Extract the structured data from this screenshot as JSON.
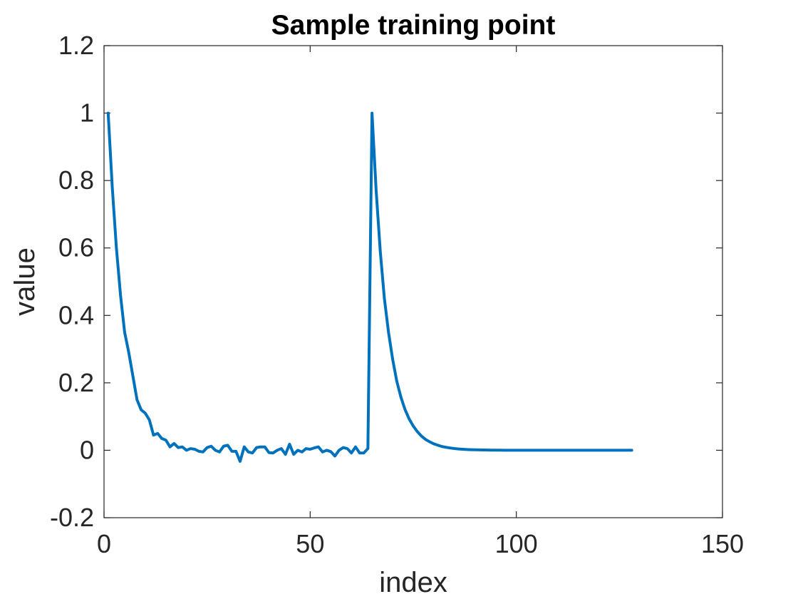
{
  "chart_data": {
    "type": "line",
    "title": "Sample training point",
    "xlabel": "index",
    "ylabel": "value",
    "xlim": [
      0,
      150
    ],
    "ylim": [
      -0.2,
      1.2
    ],
    "xticks": [
      0,
      50,
      100,
      150
    ],
    "yticks": [
      -0.2,
      0,
      0.2,
      0.4,
      0.6,
      0.8,
      1,
      1.2
    ],
    "xtick_labels": [
      "0",
      "50",
      "100",
      "150"
    ],
    "ytick_labels": [
      "-0.2",
      "0",
      "0.2",
      "0.4",
      "0.6",
      "0.8",
      "1",
      "1.2"
    ],
    "grid": false,
    "box": true,
    "series": [
      {
        "color": "#0072BD",
        "x": [
          1,
          2,
          3,
          4,
          5,
          6,
          7,
          8,
          9,
          10,
          11,
          12,
          13,
          14,
          15,
          16,
          17,
          18,
          19,
          20,
          21,
          22,
          23,
          24,
          25,
          26,
          27,
          28,
          29,
          30,
          31,
          32,
          33,
          34,
          35,
          36,
          37,
          38,
          39,
          40,
          41,
          42,
          43,
          44,
          45,
          46,
          47,
          48,
          49,
          50,
          51,
          52,
          53,
          54,
          55,
          56,
          57,
          58,
          59,
          60,
          61,
          62,
          63,
          64,
          65,
          66,
          67,
          68,
          69,
          70,
          71,
          72,
          73,
          74,
          75,
          76,
          77,
          78,
          79,
          80,
          81,
          82,
          83,
          84,
          85,
          86,
          87,
          88,
          89,
          90,
          91,
          92,
          93,
          94,
          95,
          96,
          97,
          98,
          99,
          100,
          101,
          102,
          103,
          104,
          105,
          106,
          107,
          108,
          109,
          110,
          111,
          112,
          113,
          114,
          115,
          116,
          117,
          118,
          119,
          120,
          121,
          122,
          123,
          124,
          125,
          126,
          127,
          128
        ],
        "y": [
          1.0,
          0.78,
          0.6,
          0.46,
          0.35,
          0.29,
          0.22,
          0.15,
          0.12,
          0.11,
          0.09,
          0.045,
          0.05,
          0.035,
          0.03,
          0.01,
          0.02,
          0.008,
          0.01,
          0.0,
          0.005,
          0.003,
          -0.003,
          -0.005,
          0.008,
          0.012,
          0.0,
          -0.005,
          0.012,
          0.015,
          -0.003,
          -0.003,
          -0.033,
          0.01,
          -0.005,
          -0.008,
          0.008,
          0.01,
          0.01,
          -0.007,
          -0.008,
          0.0,
          0.005,
          -0.012,
          0.018,
          -0.012,
          0.0,
          -0.005,
          0.005,
          0.003,
          0.007,
          0.01,
          -0.005,
          0.0,
          -0.004,
          -0.017,
          0.0,
          0.008,
          0.005,
          -0.008,
          0.01,
          -0.008,
          -0.008,
          0.005,
          1.0,
          0.77,
          0.59,
          0.45,
          0.35,
          0.27,
          0.205,
          0.158,
          0.121,
          0.093,
          0.072,
          0.055,
          0.042,
          0.032,
          0.025,
          0.019,
          0.015,
          0.011,
          0.0087,
          0.0067,
          0.0051,
          0.0039,
          0.003,
          0.0023,
          0.0018,
          0.0014,
          0.0011,
          0.0008,
          0.0006,
          0.0005,
          0.0004,
          0.0003,
          0.0002,
          0.0002,
          0.0001,
          0.0001,
          0,
          0,
          0,
          0,
          0,
          0,
          0,
          0,
          0,
          0,
          0,
          0,
          0,
          0,
          0,
          0,
          0,
          0,
          0,
          0,
          0,
          0,
          0,
          0,
          0,
          0,
          0,
          0
        ]
      }
    ]
  }
}
